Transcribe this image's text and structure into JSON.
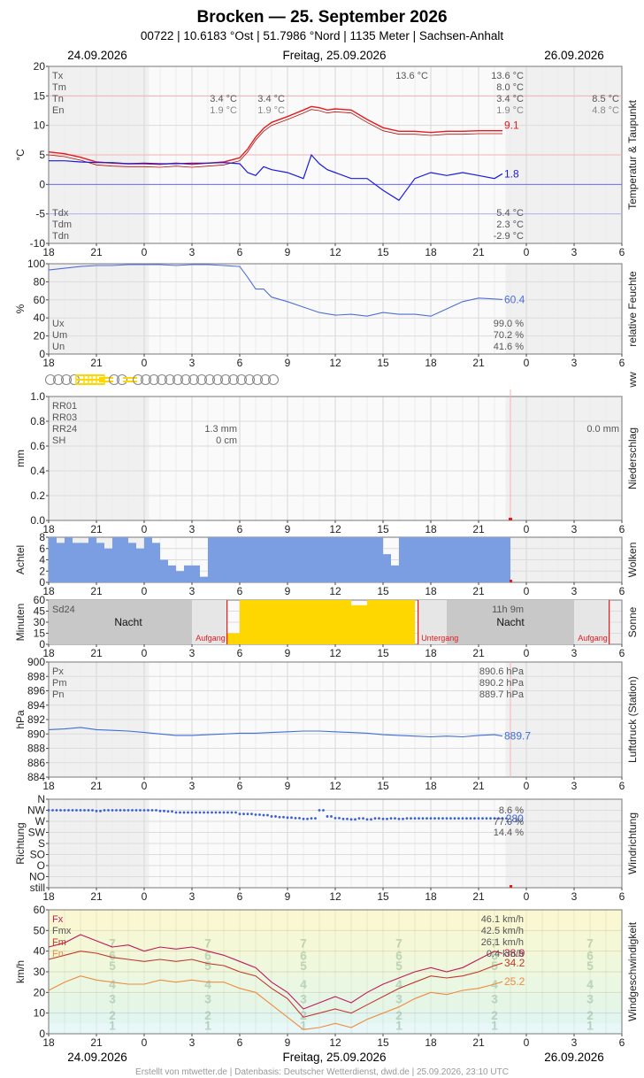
{
  "header": {
    "title": "Brocken  —  25. September 2026",
    "subtitle": "00722  |  10.6183 °Ost  |  51.7986 °Nord  |  1135 Meter  |  Sachsen-Anhalt",
    "date_left": "24.09.2026",
    "date_center": "Freitag, 25.09.2026",
    "date_right": "26.09.2026"
  },
  "footer": {
    "date_left": "24.09.2026",
    "date_center": "Freitag, 25.09.2026",
    "date_right": "26.09.2026",
    "credit": "Erstellt von mtwetter.de | Datenbasis: Deutscher Wetterdienst, dwd.de | 25.09.2026, 23:10 UTC"
  },
  "colors": {
    "temp": "#e41a1c",
    "dew": "#1a1adf",
    "humidity": "#4f6fd8",
    "clouds": "#7b9ee3",
    "sun": "#ffd700",
    "night": "#c8c8c8",
    "pressure": "#3f6fd6",
    "wind_dir": "#3a5fd6",
    "wind_fx": "#c2185b",
    "wind_fmx": "#c0392b",
    "wind_fn": "#f08a3c",
    "sunrise": "#e41a1c"
  },
  "x_axis": {
    "ticks": [
      "18",
      "21",
      "0",
      "3",
      "6",
      "9",
      "12",
      "15",
      "18",
      "21",
      "0",
      "3",
      "6"
    ]
  },
  "chart_data": [
    {
      "id": "temperature",
      "type": "line",
      "ylabel": "°C",
      "side_label": "Temperatur & Taupunkt",
      "ylim": [
        -10,
        20
      ],
      "yticks": [
        "20",
        "15",
        "10",
        "5",
        "0",
        "-5",
        "-10"
      ],
      "x_hours": [
        0,
        1,
        2,
        3,
        4,
        5,
        6,
        7,
        8,
        9,
        10,
        11,
        12,
        12.5,
        13,
        13.5,
        14,
        15,
        16,
        16.5,
        17,
        17.5,
        18,
        19,
        20,
        21,
        22,
        23,
        24,
        25,
        26,
        27,
        28,
        28.5
      ],
      "series": [
        {
          "key": "T",
          "values": [
            5.5,
            5.2,
            4.6,
            3.8,
            3.6,
            3.5,
            3.5,
            3.4,
            3.6,
            3.4,
            3.6,
            3.8,
            4.5,
            6.0,
            8.0,
            9.5,
            10.5,
            11.5,
            12.6,
            13.2,
            13.0,
            12.6,
            12.8,
            12.6,
            11.0,
            9.6,
            9.0,
            9.0,
            8.8,
            9.0,
            9.0,
            9.1,
            9.1,
            9.1
          ]
        },
        {
          "key": "Td",
          "values": [
            4.0,
            4.0,
            3.8,
            3.7,
            3.7,
            3.5,
            3.6,
            3.5,
            3.5,
            3.6,
            3.6,
            3.7,
            3.5,
            2.0,
            1.5,
            3.0,
            2.5,
            2.0,
            1.0,
            5.0,
            3.5,
            2.5,
            2.0,
            1.0,
            1.0,
            -1.0,
            -2.7,
            1.0,
            2.0,
            1.5,
            2.0,
            1.5,
            1.0,
            1.8
          ]
        }
      ],
      "end_labels": [
        "9.1",
        "1.8"
      ],
      "stats_left": [
        {
          "label": "Tx",
          "value": ""
        },
        {
          "label": "Tm",
          "value": ""
        },
        {
          "label": "Tn",
          "value": "3.4 °C"
        },
        {
          "label": "En",
          "value": "1.9 °C"
        }
      ],
      "stats_left_extra": [
        {
          "label": "",
          "value": "3.4 °C"
        },
        {
          "label": "",
          "value": "1.9 °C"
        }
      ],
      "stats_mid_tx": "13.6 °C",
      "stats_right": [
        "13.6 °C",
        "8.0 °C",
        "3.4 °C",
        "1.9 °C"
      ],
      "stats_far_right": [
        "8.5 °C",
        "4.8 °C"
      ],
      "stats_bottom": [
        {
          "label": "Tdx",
          "value": "5.4 °C"
        },
        {
          "label": "Tdm",
          "value": "2.3 °C"
        },
        {
          "label": "Tdn",
          "value": "-2.9 °C"
        }
      ]
    },
    {
      "id": "humidity",
      "type": "line",
      "ylabel": "%",
      "side_label": "relative Feuchte",
      "ylim": [
        0,
        100
      ],
      "yticks": [
        "100",
        "80",
        "60",
        "40",
        "20",
        "0"
      ],
      "x_hours": [
        0,
        1,
        2,
        3,
        4,
        5,
        6,
        7,
        8,
        9,
        10,
        11,
        12,
        12.5,
        13,
        13.5,
        14,
        15,
        16,
        17,
        18,
        19,
        20,
        21,
        22,
        23,
        24,
        25,
        26,
        27,
        28,
        28.5
      ],
      "values": [
        93,
        95,
        97,
        98,
        98,
        99,
        99,
        99,
        98,
        99,
        99,
        98,
        97,
        85,
        72,
        72,
        63,
        58,
        52,
        46,
        43,
        44,
        42,
        46,
        44,
        44,
        42,
        50,
        58,
        62,
        61,
        60.4
      ],
      "end_label": "60.4",
      "stats": [
        {
          "label": "Ux",
          "value": "99.0 %"
        },
        {
          "label": "Um",
          "value": "70.2 %"
        },
        {
          "label": "Un",
          "value": "41.6 %"
        }
      ]
    },
    {
      "id": "ww",
      "type": "table",
      "side_label": "ww",
      "symbols": [
        "circle",
        "circle",
        "circle",
        "circle",
        "fog",
        "fog",
        "fog",
        "dash",
        "circle",
        "circle",
        "dash",
        "circle",
        "circle",
        "circle",
        "circle",
        "circle",
        "circle",
        "circle",
        "circle",
        "circle",
        "circle",
        "circle",
        "circle",
        "circle",
        "circle",
        "circle",
        "circle",
        "circle",
        "circle"
      ]
    },
    {
      "id": "precipitation",
      "type": "bar",
      "ylabel": "mm",
      "side_label": "Niederschlag",
      "ylim": [
        0,
        1.0
      ],
      "yticks": [
        "1.0",
        "0.8",
        "0.6",
        "0.4",
        "0.2",
        "0.0"
      ],
      "stats": [
        {
          "label": "RR01",
          "value": ""
        },
        {
          "label": "RR03",
          "value": ""
        },
        {
          "label": "RR24",
          "value": "1.3 mm"
        },
        {
          "label": "SH",
          "value": "0 cm"
        }
      ],
      "right_value": "0.0 mm"
    },
    {
      "id": "clouds",
      "type": "bar",
      "ylabel": "Achtel",
      "side_label": "Wolken",
      "ylim": [
        0,
        8
      ],
      "yticks": [
        "8",
        "6",
        "4",
        "2",
        "0"
      ],
      "x_hours": [
        0,
        0.5,
        1,
        1.5,
        2,
        2.5,
        3,
        3.5,
        4,
        4.5,
        5,
        5.5,
        6,
        6.5,
        7,
        7.5,
        8,
        8.5,
        9,
        9.5,
        10,
        10.5,
        11,
        11.5,
        12,
        12.5,
        13,
        13.5,
        14,
        14.5,
        15,
        15.5,
        16,
        16.5,
        17,
        17.5,
        18,
        18.5,
        19,
        19.5,
        20,
        20.5,
        21,
        21.5,
        22,
        22.5,
        23,
        23.5,
        24,
        24.5,
        25,
        25.5,
        26,
        26.5,
        27,
        27.5,
        28,
        28.5
      ],
      "values": [
        8,
        7,
        8,
        7,
        7,
        8,
        7,
        6,
        8,
        8,
        7,
        6,
        8,
        7,
        4,
        3,
        2,
        3,
        3,
        1,
        8,
        8,
        8,
        8,
        8,
        8,
        8,
        8,
        8,
        8,
        8,
        8,
        8,
        8,
        8,
        8,
        8,
        8,
        8,
        8,
        8,
        8,
        5,
        3,
        8,
        8,
        8,
        8,
        8,
        8,
        8,
        8,
        8,
        8,
        8,
        8,
        8,
        8
      ]
    },
    {
      "id": "sunshine",
      "type": "bar",
      "ylabel": "Minuten",
      "side_label": "Sonne",
      "ylim": [
        0,
        60
      ],
      "yticks": [
        "60",
        "45",
        "30",
        "15",
        "0"
      ],
      "sun_minutes": [
        {
          "from": 11.2,
          "to": 12.0,
          "value": 15
        },
        {
          "from": 12.0,
          "to": 19.0,
          "value": 60
        },
        {
          "from": 19.0,
          "to": 20.0,
          "value": 53
        },
        {
          "from": 20.0,
          "to": 23.0,
          "value": 60
        }
      ],
      "stats_label": "Sd24",
      "right_value": "11h 9m",
      "night_label_1": "Nacht",
      "night_label_2": "Nacht",
      "sunrise_label_1": "Aufgang",
      "sunset_label": "Untergang",
      "sunrise_label_2": "Aufgang"
    },
    {
      "id": "pressure",
      "type": "line",
      "ylabel": "hPa",
      "side_label": "Luftdruck (Station)",
      "ylim": [
        884,
        900
      ],
      "yticks": [
        "900",
        "898",
        "896",
        "894",
        "892",
        "890",
        "888",
        "886",
        "884"
      ],
      "x_hours": [
        0,
        1,
        2,
        3,
        4,
        5,
        6,
        7,
        8,
        9,
        10,
        11,
        12,
        13,
        14,
        15,
        16,
        17,
        18,
        19,
        20,
        21,
        22,
        23,
        24,
        25,
        26,
        27,
        28,
        28.5
      ],
      "values": [
        890.6,
        890.7,
        890.9,
        890.6,
        890.5,
        890.4,
        890.2,
        890.0,
        889.8,
        889.8,
        889.9,
        890.0,
        890.1,
        890.1,
        890.2,
        890.3,
        890.4,
        890.4,
        890.3,
        890.2,
        890.1,
        889.9,
        889.8,
        889.7,
        889.6,
        889.7,
        889.6,
        889.8,
        889.9,
        889.7
      ],
      "end_label": "889.7",
      "stats": [
        {
          "label": "Px",
          "value": "890.6 hPa"
        },
        {
          "label": "Pm",
          "value": "890.2 hPa"
        },
        {
          "label": "Pn",
          "value": "889.7 hPa"
        }
      ]
    },
    {
      "id": "wind_direction",
      "type": "scatter",
      "ylabel": "Richtung",
      "side_label": "Windrichtung",
      "categories": [
        "N",
        "NW",
        "W",
        "SW",
        "S",
        "SO",
        "O",
        "NO",
        "still"
      ],
      "x_hours": [
        0,
        0.5,
        1,
        1.5,
        2,
        2.5,
        3,
        3.5,
        4,
        4.5,
        5,
        5.5,
        6,
        6.5,
        7,
        7.5,
        8,
        8.5,
        9,
        9.5,
        10,
        10.5,
        11,
        11.5,
        12,
        12.5,
        13,
        13.5,
        14,
        14.5,
        15,
        15.5,
        16,
        16.5,
        17,
        17.5,
        18,
        18.5,
        19,
        19.5,
        20,
        20.5,
        21,
        21.5,
        22,
        22.5,
        23,
        23.5,
        24,
        24.5,
        25,
        25.5,
        26,
        26.5,
        27,
        27.5,
        28,
        28.5
      ],
      "values": [
        315,
        315,
        315,
        315,
        315,
        315,
        312,
        315,
        315,
        315,
        315,
        315,
        315,
        315,
        312,
        310,
        306,
        306,
        306,
        306,
        306,
        306,
        306,
        306,
        300,
        300,
        297,
        295,
        290,
        287,
        285,
        283,
        280,
        282,
        315,
        290,
        283,
        280,
        278,
        282,
        278,
        282,
        280,
        282,
        280,
        282,
        282,
        282,
        282,
        282,
        282,
        282,
        282,
        282,
        282,
        282,
        282,
        282
      ],
      "end_label": "280",
      "stats": [
        "8.6 %",
        "77.0 %",
        "14.4 %"
      ]
    },
    {
      "id": "wind_speed",
      "type": "line",
      "ylabel": "km/h",
      "side_label": "Windgeschwindigkeit",
      "ylim": [
        0,
        60
      ],
      "yticks": [
        "60",
        "50",
        "40",
        "30",
        "20",
        "10",
        "0"
      ],
      "x_hours": [
        0,
        1,
        2,
        3,
        4,
        5,
        6,
        7,
        8,
        9,
        10,
        11,
        12,
        13,
        14,
        15,
        16,
        17,
        18,
        19,
        20,
        21,
        22,
        23,
        24,
        25,
        26,
        27,
        28,
        28.5
      ],
      "series": [
        {
          "key": "Fx",
          "values": [
            42,
            44,
            48,
            45,
            42,
            43,
            40,
            42,
            41,
            42,
            40,
            38,
            35,
            32,
            25,
            20,
            12,
            15,
            18,
            15,
            20,
            24,
            27,
            30,
            32,
            30,
            32,
            36,
            40,
            38.9
          ]
        },
        {
          "key": "Fmx",
          "values": [
            36,
            38,
            40,
            39,
            37,
            36,
            35,
            36,
            35,
            36,
            34,
            33,
            30,
            28,
            22,
            17,
            8,
            10,
            12,
            10,
            14,
            18,
            22,
            25,
            28,
            27,
            28,
            30,
            33,
            34.2
          ]
        },
        {
          "key": "Fn",
          "values": [
            21,
            25,
            28,
            26,
            25,
            24,
            24,
            26,
            25,
            26,
            25,
            25,
            22,
            20,
            14,
            8,
            2,
            3,
            5,
            3,
            7,
            10,
            13,
            17,
            20,
            19,
            21,
            22,
            24,
            25.2
          ]
        }
      ],
      "end_labels": [
        "38.9",
        "34.2",
        "25.2"
      ],
      "stats": [
        {
          "label": "Fx",
          "value": "46.1 km/h"
        },
        {
          "label": "Fmx",
          "value": "42.5 km/h"
        },
        {
          "label": "Fm",
          "value": "26.1 km/h"
        },
        {
          "label": "Fn",
          "value": "0.4 km/h"
        }
      ],
      "beaufort_labels": [
        "7",
        "6",
        "5",
        "4",
        "3",
        "2",
        "1"
      ]
    }
  ]
}
